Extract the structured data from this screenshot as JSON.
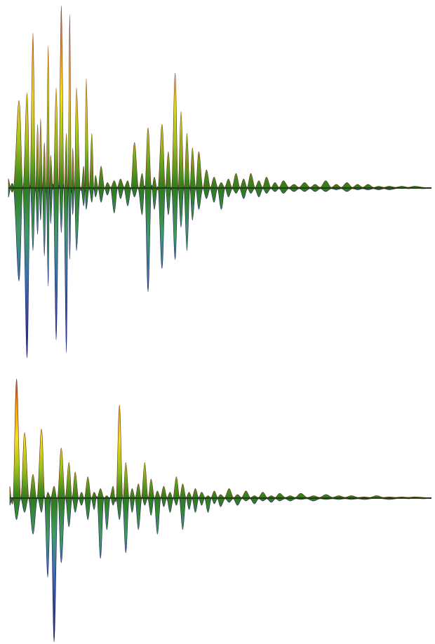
{
  "colors": {
    "background": "#ffffff",
    "positive_stops": [
      "#2f7a1e",
      "#9bc21f",
      "#f2e21a",
      "#f3a21a",
      "#d03a1e"
    ],
    "negative_stops": [
      "#2f7a1e",
      "#3f9a63",
      "#3c6fb0",
      "#35409a",
      "#2a2b78"
    ]
  },
  "chart_data": [
    {
      "type": "area",
      "title": "",
      "xlabel": "",
      "ylabel": "",
      "grid": false,
      "legend": "none",
      "xlim": [
        0,
        100
      ],
      "ylim": [
        -1,
        1
      ],
      "x": [
        0,
        2.5,
        4.4,
        5.8,
        6.9,
        7.6,
        8.5,
        9.4,
        10.0,
        11.3,
        12.5,
        13.7,
        14.5,
        15.2,
        16.1,
        17.8,
        18.4,
        19.7,
        20.6,
        21.9,
        23.4,
        25.0,
        26.5,
        28.2,
        29.8,
        31.6,
        33.0,
        34.5,
        36.3,
        37.8,
        39.4,
        40.8,
        42.2,
        43.5,
        45.0,
        46.8,
        48.6,
        50.3,
        52.0,
        53.8,
        55.6,
        57.3,
        59.2,
        61.0,
        63.0,
        65.0,
        67.5,
        70.0,
        72.5,
        75.0,
        77.5,
        80.0,
        82.5,
        85.0,
        87.5,
        90.0,
        93.0,
        96.0,
        100
      ],
      "series": [
        {
          "values": [
            0.05,
            0.48,
            0.52,
            0.85,
            0.35,
            0.38,
            0.25,
            0.78,
            0.18,
            0.55,
            1.0,
            0.3,
            0.95,
            0.22,
            0.55,
            0.12,
            0.6,
            0.3,
            0.07,
            0.12,
            0.03,
            0.04,
            0.05,
            0.04,
            0.25,
            0.08,
            0.33,
            0.06,
            0.35,
            0.2,
            0.63,
            0.42,
            0.3,
            0.22,
            0.2,
            0.1,
            0.06,
            0.03,
            0.05,
            0.08,
            0.05,
            0.08,
            0.04,
            0.06,
            0.03,
            0.04,
            0.02,
            0.03,
            0.02,
            0.04,
            0.02,
            0.03,
            0.02,
            0.02,
            0.01,
            0.01,
            0.01,
            0.01,
            0.0
          ]
        },
        {
          "values": [
            -0.05,
            -0.52,
            -0.95,
            -0.35,
            -0.26,
            -0.18,
            -0.38,
            -0.55,
            -0.2,
            -0.85,
            -0.25,
            -0.92,
            -0.4,
            -0.15,
            -0.35,
            -0.1,
            -0.12,
            -0.08,
            -0.05,
            -0.08,
            -0.04,
            -0.14,
            -0.06,
            -0.1,
            -0.05,
            -0.15,
            -0.58,
            -0.12,
            -0.45,
            -0.15,
            -0.4,
            -0.22,
            -0.35,
            -0.18,
            -0.12,
            -0.06,
            -0.08,
            -0.12,
            -0.05,
            -0.03,
            -0.06,
            -0.03,
            -0.05,
            -0.03,
            -0.02,
            -0.03,
            -0.02,
            -0.02,
            -0.02,
            -0.02,
            -0.01,
            -0.02,
            -0.01,
            -0.01,
            -0.01,
            -0.01,
            0.0,
            0.0,
            0.0
          ]
        }
      ]
    },
    {
      "type": "area",
      "title": "",
      "xlabel": "",
      "ylabel": "",
      "grid": false,
      "legend": "none",
      "xlim": [
        0,
        100
      ],
      "ylim": [
        -1,
        1
      ],
      "x": [
        0,
        1.6,
        3.5,
        5.5,
        7.5,
        9.0,
        10.5,
        12.2,
        14.0,
        15.5,
        17.0,
        18.5,
        20.0,
        21.5,
        23.0,
        24.5,
        26.0,
        27.5,
        29.0,
        30.5,
        32.0,
        33.5,
        35.0,
        36.5,
        38.0,
        39.5,
        41.0,
        42.5,
        44.0,
        45.5,
        47.0,
        48.5,
        50.0,
        52.0,
        54.0,
        56.0,
        58.0,
        60.0,
        62.0,
        64.0,
        66.5,
        69.0,
        72.0,
        75.0,
        78.0,
        81.0,
        84.0,
        87.0,
        90.0,
        93.0,
        96.0,
        100
      ],
      "series": [
        {
          "values": [
            0.1,
            1.0,
            0.55,
            0.2,
            0.58,
            0.05,
            0.1,
            0.42,
            0.3,
            0.22,
            0.05,
            0.18,
            0.05,
            0.08,
            0.02,
            0.1,
            0.78,
            0.3,
            0.08,
            0.12,
            0.3,
            0.16,
            0.06,
            0.1,
            0.05,
            0.18,
            0.12,
            0.05,
            0.08,
            0.05,
            0.02,
            0.06,
            0.03,
            0.08,
            0.03,
            0.06,
            0.02,
            0.05,
            0.02,
            0.04,
            0.02,
            0.04,
            0.02,
            0.03,
            0.02,
            0.02,
            0.01,
            0.02,
            0.01,
            0.01,
            0.01,
            0.0
          ]
        },
        {
          "values": [
            -0.05,
            -0.15,
            -0.1,
            -0.25,
            -0.1,
            -0.55,
            -1.0,
            -0.45,
            -0.2,
            -0.1,
            -0.05,
            -0.15,
            -0.08,
            -0.42,
            -0.22,
            -0.05,
            -0.15,
            -0.38,
            -0.1,
            -0.22,
            -0.05,
            -0.12,
            -0.25,
            -0.06,
            -0.1,
            -0.05,
            -0.22,
            -0.08,
            -0.1,
            -0.05,
            -0.1,
            -0.04,
            -0.06,
            -0.03,
            -0.05,
            -0.02,
            -0.04,
            -0.02,
            -0.03,
            -0.02,
            -0.02,
            -0.01,
            -0.02,
            -0.01,
            -0.01,
            -0.01,
            -0.01,
            0.0,
            -0.01,
            0.0,
            0.0,
            0.0
          ]
        }
      ]
    }
  ]
}
